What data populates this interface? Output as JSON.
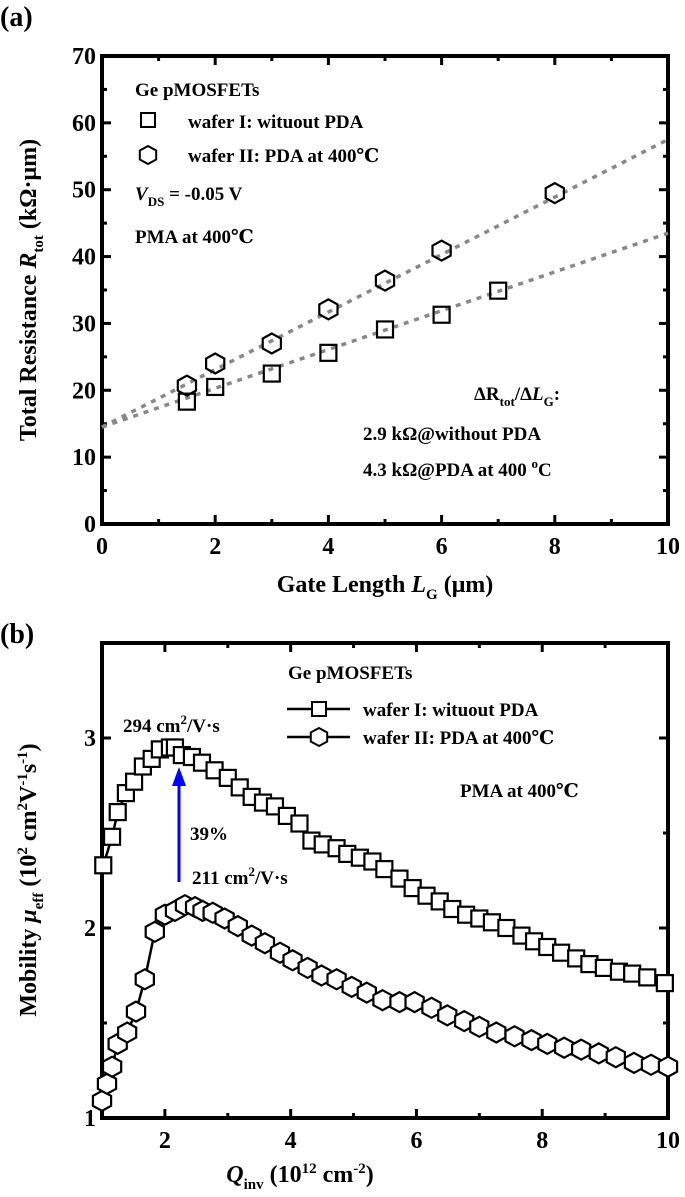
{
  "panel_a": {
    "label": "(a)",
    "legend": {
      "title": "Ge pMOSFETs",
      "items": [
        "wafer I: wituout PDA",
        "wafer II: PDA at 400℃"
      ],
      "vds_var": "V",
      "vds_sub": "DS",
      "vds_text": " = -0.05 V",
      "pma": "PMA at 400℃"
    },
    "annotation": {
      "delta_a": "ΔR",
      "delta_sub1": "tot",
      "delta_b": "/Δ",
      "delta_var": "L",
      "delta_sub2": "G",
      "delta_c": ":",
      "line1": "2.9 kΩ@without PDA",
      "line2_a": "4.3 kΩ@PDA at 400 ",
      "line2_sup": "o",
      "line2_b": "C"
    },
    "ylabel": {
      "main": "Total Resistance ",
      "var": "R",
      "sub": "tot",
      "unit": " (kΩ·μm)"
    },
    "xlabel": {
      "main": "Gate Length ",
      "var": "L",
      "sub": "G",
      "unit": " (μm)"
    }
  },
  "panel_b": {
    "label": "(b)",
    "legend": {
      "title": "Ge pMOSFETs",
      "items": [
        "wafer I: wituout PDA",
        "wafer II: PDA at 400℃"
      ],
      "pma": "PMA at 400℃"
    },
    "annotation": {
      "peak1_a": "294 cm",
      "peak1_sup": "2",
      "peak1_b": "/V·s",
      "peak2_a": "211 cm",
      "peak2_sup": "2",
      "peak2_b": "/V·s",
      "gain": "39%",
      "gain_color": "#0000ff"
    },
    "ylabel": {
      "main": "Mobility ",
      "var": "μ",
      "sub": "eff",
      "unit_a": " (10",
      "sup1": "2",
      "unit_b": " cm",
      "sup2": "2",
      "unit_c": "V",
      "sup3": "-1",
      "unit_d": "s",
      "sup4": "-1",
      "unit_e": ")"
    },
    "xlabel": {
      "var": "Q",
      "sub": "inv",
      "unit_a": " (10",
      "sup1": "12",
      "unit_b": " cm",
      "sup2": "-2",
      "unit_c": ")"
    }
  },
  "chart_data": [
    {
      "type": "scatter",
      "xlim": [
        0,
        10
      ],
      "ylim": [
        0,
        70
      ],
      "xticks": [
        0,
        2,
        4,
        6,
        8,
        10
      ],
      "yticks": [
        0,
        10,
        20,
        30,
        40,
        50,
        60,
        70
      ],
      "grid": false,
      "legend_position": "top-left",
      "series": [
        {
          "name": "wafer I: wituout PDA",
          "marker": "square",
          "x": [
            1.5,
            2,
            3,
            4,
            5,
            6,
            7
          ],
          "y": [
            18.3,
            20.5,
            22.5,
            25.6,
            29.1,
            31.3,
            34.9
          ],
          "fit": {
            "intercept": 14.5,
            "slope": 2.9,
            "style": "dotted",
            "color": "#888888"
          }
        },
        {
          "name": "wafer II: PDA at 400℃",
          "marker": "hexagon",
          "x": [
            1.5,
            2,
            3,
            4,
            5,
            6,
            8
          ],
          "y": [
            20.7,
            24.0,
            27.0,
            32.1,
            36.4,
            40.9,
            49.5
          ],
          "fit": {
            "intercept": 14.5,
            "slope": 4.3,
            "style": "dotted",
            "color": "#888888"
          }
        }
      ]
    },
    {
      "type": "line",
      "xlim": [
        1,
        10
      ],
      "ylim": [
        1,
        3.5
      ],
      "xticks": [
        2,
        4,
        6,
        8,
        10
      ],
      "yticks": [
        1,
        2,
        3
      ],
      "grid": false,
      "legend_position": "top-right",
      "series": [
        {
          "name": "wafer I: wituout PDA",
          "marker": "square",
          "x": [
            1.02,
            1.16,
            1.25,
            1.38,
            1.51,
            1.65,
            1.79,
            1.92,
            2.08,
            2.16,
            2.27,
            2.43,
            2.59,
            2.79,
            3.0,
            3.19,
            3.38,
            3.56,
            3.75,
            3.94,
            4.14,
            4.33,
            4.51,
            4.73,
            4.9,
            5.1,
            5.3,
            5.49,
            5.73,
            5.94,
            6.16,
            6.37,
            6.57,
            6.79,
            7.0,
            7.2,
            7.43,
            7.67,
            7.87,
            8.08,
            8.3,
            8.54,
            8.75,
            8.98,
            9.22,
            9.43,
            9.67,
            9.95
          ],
          "y": [
            2.33,
            2.48,
            2.61,
            2.71,
            2.77,
            2.85,
            2.89,
            2.94,
            2.95,
            2.95,
            2.91,
            2.9,
            2.87,
            2.83,
            2.79,
            2.74,
            2.69,
            2.66,
            2.64,
            2.59,
            2.55,
            2.46,
            2.44,
            2.42,
            2.39,
            2.37,
            2.35,
            2.31,
            2.26,
            2.21,
            2.17,
            2.14,
            2.1,
            2.07,
            2.05,
            2.03,
            2.0,
            1.96,
            1.93,
            1.9,
            1.87,
            1.84,
            1.81,
            1.79,
            1.77,
            1.76,
            1.74,
            1.71
          ]
        },
        {
          "name": "wafer II: PDA at 400℃",
          "marker": "hexagon",
          "x": [
            1.0,
            1.08,
            1.16,
            1.25,
            1.4,
            1.54,
            1.68,
            1.84,
            2.0,
            2.16,
            2.32,
            2.48,
            2.6,
            2.76,
            2.95,
            3.16,
            3.38,
            3.59,
            3.83,
            4.03,
            4.27,
            4.49,
            4.73,
            4.97,
            5.21,
            5.46,
            5.73,
            5.97,
            6.24,
            6.49,
            6.76,
            7.0,
            7.27,
            7.56,
            7.83,
            8.08,
            8.35,
            8.62,
            8.9,
            9.17,
            9.46,
            9.73,
            10.0
          ],
          "y": [
            1.09,
            1.18,
            1.27,
            1.39,
            1.45,
            1.56,
            1.73,
            1.98,
            2.07,
            2.09,
            2.12,
            2.11,
            2.09,
            2.08,
            2.05,
            2.01,
            1.96,
            1.92,
            1.87,
            1.83,
            1.79,
            1.75,
            1.73,
            1.69,
            1.66,
            1.62,
            1.61,
            1.61,
            1.58,
            1.54,
            1.51,
            1.48,
            1.45,
            1.43,
            1.41,
            1.39,
            1.37,
            1.36,
            1.34,
            1.32,
            1.29,
            1.28,
            1.27
          ]
        }
      ]
    }
  ]
}
